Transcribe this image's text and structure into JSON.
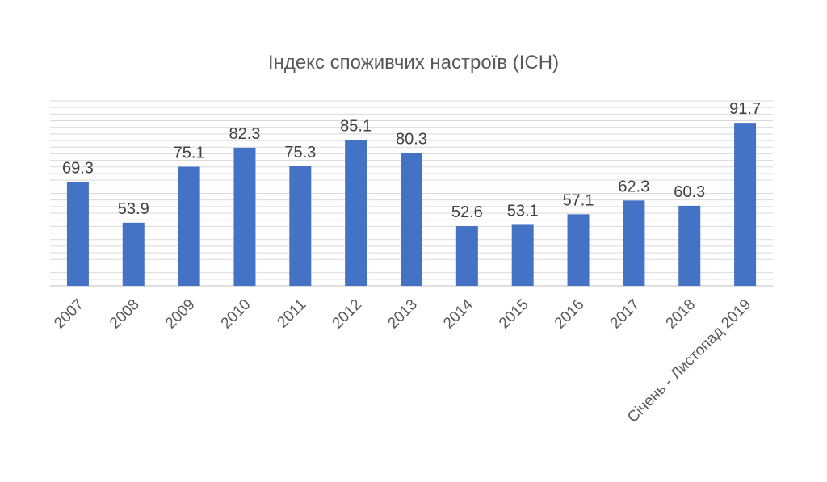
{
  "chart_data": {
    "type": "bar",
    "title": "Індекс споживчих настроїв (ІСН)",
    "categories": [
      "2007",
      "2008",
      "2009",
      "2010",
      "2011",
      "2012",
      "2013",
      "2014",
      "2015",
      "2016",
      "2017",
      "2018",
      "Січень - Листопад 2019"
    ],
    "values": [
      69.3,
      53.9,
      75.1,
      82.3,
      75.3,
      85.1,
      80.3,
      52.6,
      53.1,
      57.1,
      62.3,
      60.3,
      91.7
    ],
    "value_labels": [
      "69.3",
      "53.9",
      "75.1",
      "82.3",
      "75.3",
      "85.1",
      "80.3",
      "52.6",
      "53.1",
      "57.1",
      "62.3",
      "60.3",
      "91.7"
    ],
    "ylim": [
      30,
      100
    ],
    "grid": true,
    "legend": false,
    "colors": {
      "bar": "#4472c4"
    }
  }
}
